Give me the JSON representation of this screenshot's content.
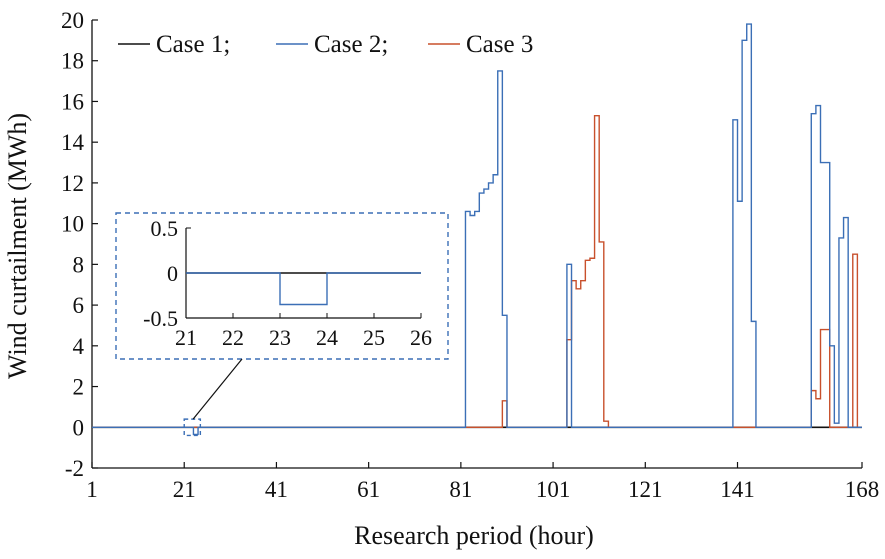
{
  "colors": {
    "case1": "#111111",
    "case2": "#3b6fb6",
    "case3": "#c8502c",
    "axis": "#111111",
    "inset_border": "#3b6fb6"
  },
  "chart_data": {
    "type": "line",
    "step": true,
    "xlabel": "Research period (hour)",
    "ylabel": "Wind curtailment (MWh)",
    "xlim": [
      1,
      168
    ],
    "ylim": [
      -2,
      20
    ],
    "xticks": [
      1,
      21,
      41,
      61,
      81,
      101,
      121,
      141,
      168
    ],
    "yticks": [
      -2,
      0,
      2,
      4,
      6,
      8,
      10,
      12,
      14,
      16,
      18,
      20
    ],
    "grid": false,
    "legend": {
      "placement": "top-left",
      "items": [
        {
          "label": "Case 1;",
          "series": "case1"
        },
        {
          "label": "Case 2;",
          "series": "case2"
        },
        {
          "label": "Case 3",
          "series": "case3"
        }
      ]
    },
    "series": [
      {
        "name": "Case 1",
        "key": "case1",
        "points": [
          [
            1,
            0
          ],
          [
            168,
            0
          ]
        ]
      },
      {
        "name": "Case 2",
        "key": "case2",
        "points": [
          [
            1,
            0
          ],
          [
            23,
            0
          ],
          [
            23,
            -0.35
          ],
          [
            24,
            -0.35
          ],
          [
            24,
            0
          ],
          [
            82,
            0
          ],
          [
            82,
            10.6
          ],
          [
            83,
            10.4
          ],
          [
            84,
            10.6
          ],
          [
            85,
            11.5
          ],
          [
            86,
            11.7
          ],
          [
            87,
            12.0
          ],
          [
            88,
            12.4
          ],
          [
            89,
            17.5
          ],
          [
            90,
            5.5
          ],
          [
            91,
            0
          ],
          [
            104,
            0
          ],
          [
            104,
            8.0
          ],
          [
            105,
            0
          ],
          [
            140,
            0
          ],
          [
            140,
            15.1
          ],
          [
            141,
            11.1
          ],
          [
            142,
            19.0
          ],
          [
            143,
            19.8
          ],
          [
            144,
            5.2
          ],
          [
            145,
            0
          ],
          [
            157,
            0
          ],
          [
            157,
            15.4
          ],
          [
            158,
            15.8
          ],
          [
            159,
            13.0
          ],
          [
            160,
            13.0
          ],
          [
            161,
            4.0
          ],
          [
            162,
            0.2
          ],
          [
            163,
            9.3
          ],
          [
            164,
            10.3
          ],
          [
            165,
            0
          ],
          [
            168,
            0
          ]
        ]
      },
      {
        "name": "Case 3",
        "key": "case3",
        "points": [
          [
            1,
            0
          ],
          [
            90,
            0
          ],
          [
            90,
            1.3
          ],
          [
            91,
            0
          ],
          [
            104,
            0
          ],
          [
            104,
            4.3
          ],
          [
            105,
            7.2
          ],
          [
            106,
            6.8
          ],
          [
            107,
            7.2
          ],
          [
            108,
            8.2
          ],
          [
            109,
            8.3
          ],
          [
            110,
            15.3
          ],
          [
            111,
            9.1
          ],
          [
            112,
            0.3
          ],
          [
            113,
            0
          ],
          [
            157,
            0
          ],
          [
            157,
            1.8
          ],
          [
            158,
            1.4
          ],
          [
            159,
            4.8
          ],
          [
            160,
            4.8
          ],
          [
            161,
            0
          ],
          [
            166,
            0
          ],
          [
            166,
            8.5
          ],
          [
            167,
            0
          ],
          [
            168,
            0
          ]
        ]
      }
    ],
    "inset": {
      "xlim": [
        21,
        26
      ],
      "ylim": [
        -0.5,
        0.5
      ],
      "xticks": [
        21,
        22,
        23,
        24,
        25,
        26
      ],
      "yticks": [
        -0.5,
        0,
        0.5
      ],
      "ytick_labels": [
        "-0.5",
        "0",
        "0.5"
      ],
      "source_region": {
        "x": [
          21,
          24.5
        ],
        "y": [
          -0.4,
          0.4
        ]
      }
    }
  }
}
